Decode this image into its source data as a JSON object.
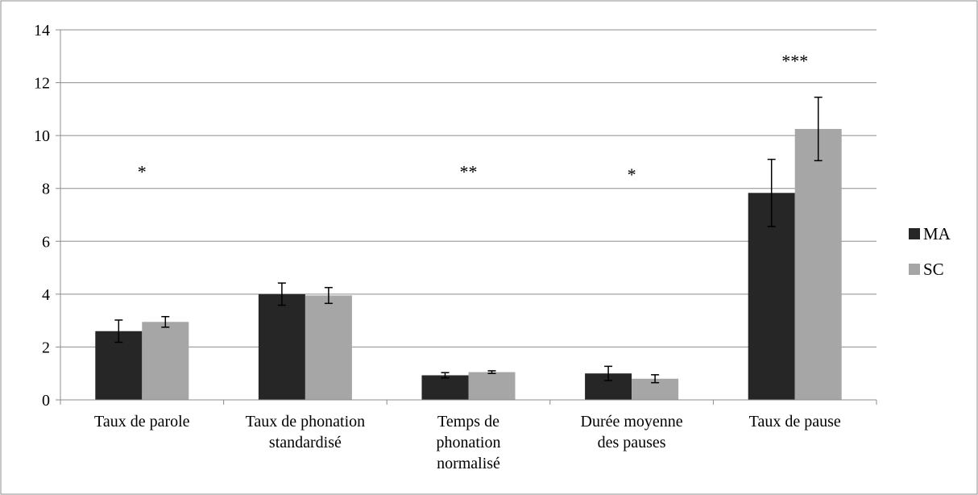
{
  "chart_data": {
    "type": "bar",
    "categories": [
      [
        "Taux de parole"
      ],
      [
        "Taux de phonation",
        "standardisé"
      ],
      [
        "Temps de",
        "phonation",
        "normalisé"
      ],
      [
        "Durée moyenne",
        "des pauses"
      ],
      [
        "Taux de pause"
      ]
    ],
    "series": [
      {
        "name": "MA",
        "color": "#262626",
        "values": [
          2.6,
          4.0,
          0.93,
          1.0,
          7.83
        ],
        "errors": [
          0.42,
          0.42,
          0.1,
          0.27,
          1.27
        ]
      },
      {
        "name": "SC",
        "color": "#a6a6a6",
        "values": [
          2.95,
          3.95,
          1.05,
          0.8,
          10.25
        ],
        "errors": [
          0.2,
          0.3,
          0.05,
          0.15,
          1.2
        ]
      }
    ],
    "significance": [
      "*",
      "",
      "**",
      "*",
      "***"
    ],
    "significance_y": [
      8.4,
      null,
      8.4,
      8.3,
      12.6
    ],
    "ylim": [
      0,
      14
    ],
    "yticks": [
      0,
      2,
      4,
      6,
      8,
      10,
      12,
      14
    ],
    "grid": true,
    "legend_position": "right",
    "title": "",
    "xlabel": "",
    "ylabel": ""
  }
}
